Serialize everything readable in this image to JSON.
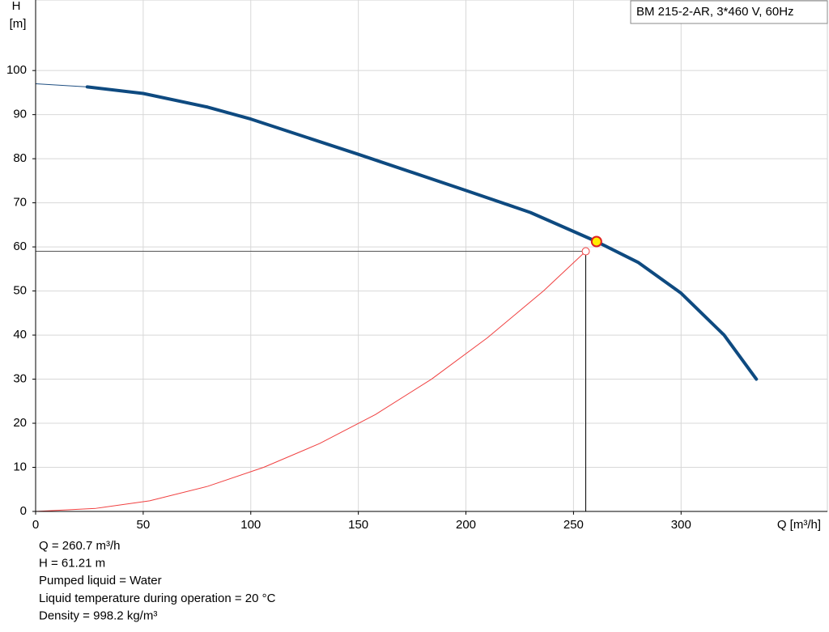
{
  "chart_data": {
    "type": "line",
    "title": "BM 215-2-AR, 3*460 V, 60Hz",
    "y_label": [
      "H",
      "[m]"
    ],
    "x_label": "Q [m³/h]",
    "xlim": [
      0,
      368
    ],
    "ylim": [
      0,
      116
    ],
    "xticks": [
      0,
      50,
      100,
      150,
      200,
      250,
      300
    ],
    "yticks": [
      0,
      10,
      20,
      30,
      40,
      50,
      60,
      70,
      80,
      90,
      100
    ],
    "grid": true,
    "series": [
      {
        "color": "#1f4f82",
        "width": 1,
        "x": [
          0,
          24
        ],
        "values": [
          97,
          96.3
        ]
      },
      {
        "color": "#0e4a80",
        "width": 4,
        "x": [
          24,
          50,
          80,
          100,
          150,
          200,
          230,
          260.7,
          280,
          300,
          320,
          335
        ],
        "values": [
          96.3,
          94.8,
          91.7,
          89,
          81,
          72.8,
          67.8,
          61.21,
          56.5,
          49.5,
          40,
          30
        ]
      },
      {
        "color": "#f04040",
        "width": 1,
        "x": [
          0,
          28,
          53,
          80,
          106,
          132,
          158,
          184,
          210,
          236,
          255.7
        ],
        "values": [
          0,
          0.7,
          2.4,
          5.7,
          10,
          15.4,
          22,
          30,
          39.4,
          50,
          59
        ]
      }
    ],
    "duty_point": {
      "x": 255.7,
      "y": 59
    },
    "operating_point": {
      "x": 260.7,
      "y": 61.21
    },
    "info": [
      "Q = 260.7 m³/h",
      "H = 61.21 m",
      "Pumped liquid = Water",
      "Liquid temperature during operation = 20 °C",
      "Density = 998.2 kg/m³"
    ]
  }
}
